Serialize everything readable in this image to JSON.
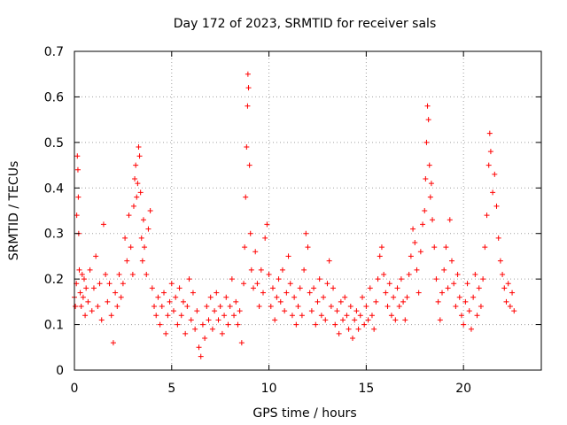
{
  "chart_data": {
    "type": "scatter",
    "title": "Day 172 of 2023, SRMTID for receiver sals",
    "xlabel": "GPS time / hours",
    "ylabel": "SRMTID / TECUs",
    "xlim": [
      0,
      24
    ],
    "ylim": [
      0,
      0.7
    ],
    "xticks": [
      0,
      5,
      10,
      15,
      20
    ],
    "yticks": [
      0,
      0.1,
      0.2,
      0.3,
      0.4,
      0.5,
      0.6,
      0.7
    ],
    "xtick_labels": [
      "0",
      "5",
      "10",
      "15",
      "20"
    ],
    "ytick_labels": [
      "0",
      "0.1",
      "0.2",
      "0.3",
      "0.4",
      "0.5",
      "0.6",
      "0.7"
    ],
    "grid": true,
    "marker": "+",
    "color": "#ff0000",
    "series": [
      {
        "name": "SRMTID",
        "points": [
          [
            0.0,
            0.16
          ],
          [
            0.05,
            0.14
          ],
          [
            0.1,
            0.19
          ],
          [
            0.12,
            0.34
          ],
          [
            0.15,
            0.47
          ],
          [
            0.18,
            0.44
          ],
          [
            0.2,
            0.38
          ],
          [
            0.22,
            0.3
          ],
          [
            0.25,
            0.22
          ],
          [
            0.3,
            0.17
          ],
          [
            0.35,
            0.14
          ],
          [
            0.4,
            0.21
          ],
          [
            0.45,
            0.16
          ],
          [
            0.5,
            0.2
          ],
          [
            0.55,
            0.12
          ],
          [
            0.6,
            0.18
          ],
          [
            0.7,
            0.15
          ],
          [
            0.8,
            0.22
          ],
          [
            0.9,
            0.13
          ],
          [
            1.0,
            0.18
          ],
          [
            1.1,
            0.25
          ],
          [
            1.2,
            0.14
          ],
          [
            1.3,
            0.19
          ],
          [
            1.4,
            0.11
          ],
          [
            1.5,
            0.32
          ],
          [
            1.6,
            0.21
          ],
          [
            1.7,
            0.15
          ],
          [
            1.8,
            0.19
          ],
          [
            1.9,
            0.12
          ],
          [
            2.0,
            0.06
          ],
          [
            2.1,
            0.17
          ],
          [
            2.2,
            0.14
          ],
          [
            2.3,
            0.21
          ],
          [
            2.4,
            0.16
          ],
          [
            2.5,
            0.19
          ],
          [
            2.6,
            0.29
          ],
          [
            2.7,
            0.24
          ],
          [
            2.8,
            0.34
          ],
          [
            2.9,
            0.27
          ],
          [
            3.0,
            0.21
          ],
          [
            3.05,
            0.36
          ],
          [
            3.1,
            0.42
          ],
          [
            3.15,
            0.45
          ],
          [
            3.2,
            0.38
          ],
          [
            3.25,
            0.41
          ],
          [
            3.3,
            0.49
          ],
          [
            3.35,
            0.47
          ],
          [
            3.4,
            0.39
          ],
          [
            3.45,
            0.29
          ],
          [
            3.5,
            0.24
          ],
          [
            3.55,
            0.33
          ],
          [
            3.6,
            0.27
          ],
          [
            3.7,
            0.21
          ],
          [
            3.8,
            0.31
          ],
          [
            3.9,
            0.35
          ],
          [
            4.0,
            0.18
          ],
          [
            4.1,
            0.14
          ],
          [
            4.2,
            0.12
          ],
          [
            4.3,
            0.16
          ],
          [
            4.4,
            0.1
          ],
          [
            4.5,
            0.14
          ],
          [
            4.6,
            0.17
          ],
          [
            4.7,
            0.08
          ],
          [
            4.8,
            0.12
          ],
          [
            4.9,
            0.15
          ],
          [
            5.0,
            0.19
          ],
          [
            5.1,
            0.13
          ],
          [
            5.2,
            0.16
          ],
          [
            5.3,
            0.1
          ],
          [
            5.4,
            0.18
          ],
          [
            5.5,
            0.12
          ],
          [
            5.6,
            0.15
          ],
          [
            5.7,
            0.08
          ],
          [
            5.8,
            0.14
          ],
          [
            5.9,
            0.2
          ],
          [
            6.0,
            0.11
          ],
          [
            6.1,
            0.17
          ],
          [
            6.2,
            0.09
          ],
          [
            6.3,
            0.13
          ],
          [
            6.4,
            0.05
          ],
          [
            6.5,
            0.03
          ],
          [
            6.6,
            0.1
          ],
          [
            6.7,
            0.07
          ],
          [
            6.8,
            0.14
          ],
          [
            6.9,
            0.11
          ],
          [
            7.0,
            0.16
          ],
          [
            7.1,
            0.09
          ],
          [
            7.2,
            0.13
          ],
          [
            7.3,
            0.17
          ],
          [
            7.4,
            0.11
          ],
          [
            7.5,
            0.14
          ],
          [
            7.6,
            0.08
          ],
          [
            7.7,
            0.12
          ],
          [
            7.8,
            0.16
          ],
          [
            7.9,
            0.1
          ],
          [
            8.0,
            0.14
          ],
          [
            8.1,
            0.2
          ],
          [
            8.2,
            0.12
          ],
          [
            8.3,
            0.15
          ],
          [
            8.4,
            0.1
          ],
          [
            8.5,
            0.13
          ],
          [
            8.6,
            0.06
          ],
          [
            8.7,
            0.19
          ],
          [
            8.75,
            0.27
          ],
          [
            8.8,
            0.38
          ],
          [
            8.85,
            0.49
          ],
          [
            8.9,
            0.58
          ],
          [
            8.92,
            0.65
          ],
          [
            8.95,
            0.62
          ],
          [
            9.0,
            0.45
          ],
          [
            9.05,
            0.3
          ],
          [
            9.1,
            0.22
          ],
          [
            9.2,
            0.18
          ],
          [
            9.3,
            0.26
          ],
          [
            9.4,
            0.19
          ],
          [
            9.5,
            0.14
          ],
          [
            9.6,
            0.22
          ],
          [
            9.7,
            0.17
          ],
          [
            9.8,
            0.29
          ],
          [
            9.9,
            0.32
          ],
          [
            10.0,
            0.21
          ],
          [
            10.1,
            0.14
          ],
          [
            10.2,
            0.18
          ],
          [
            10.3,
            0.11
          ],
          [
            10.4,
            0.16
          ],
          [
            10.5,
            0.2
          ],
          [
            10.6,
            0.15
          ],
          [
            10.7,
            0.22
          ],
          [
            10.8,
            0.13
          ],
          [
            10.9,
            0.17
          ],
          [
            11.0,
            0.25
          ],
          [
            11.1,
            0.19
          ],
          [
            11.2,
            0.12
          ],
          [
            11.3,
            0.16
          ],
          [
            11.4,
            0.1
          ],
          [
            11.5,
            0.14
          ],
          [
            11.6,
            0.18
          ],
          [
            11.7,
            0.12
          ],
          [
            11.8,
            0.22
          ],
          [
            11.9,
            0.3
          ],
          [
            12.0,
            0.27
          ],
          [
            12.1,
            0.17
          ],
          [
            12.2,
            0.13
          ],
          [
            12.3,
            0.18
          ],
          [
            12.4,
            0.1
          ],
          [
            12.5,
            0.15
          ],
          [
            12.6,
            0.2
          ],
          [
            12.7,
            0.12
          ],
          [
            12.8,
            0.16
          ],
          [
            12.9,
            0.11
          ],
          [
            13.0,
            0.19
          ],
          [
            13.1,
            0.24
          ],
          [
            13.2,
            0.14
          ],
          [
            13.3,
            0.18
          ],
          [
            13.4,
            0.1
          ],
          [
            13.5,
            0.13
          ],
          [
            13.6,
            0.08
          ],
          [
            13.7,
            0.15
          ],
          [
            13.8,
            0.11
          ],
          [
            13.9,
            0.16
          ],
          [
            14.0,
            0.12
          ],
          [
            14.1,
            0.09
          ],
          [
            14.2,
            0.14
          ],
          [
            14.3,
            0.07
          ],
          [
            14.4,
            0.11
          ],
          [
            14.5,
            0.13
          ],
          [
            14.6,
            0.09
          ],
          [
            14.7,
            0.12
          ],
          [
            14.8,
            0.16
          ],
          [
            14.9,
            0.1
          ],
          [
            15.0,
            0.14
          ],
          [
            15.1,
            0.11
          ],
          [
            15.2,
            0.18
          ],
          [
            15.3,
            0.12
          ],
          [
            15.4,
            0.09
          ],
          [
            15.5,
            0.15
          ],
          [
            15.6,
            0.2
          ],
          [
            15.7,
            0.25
          ],
          [
            15.8,
            0.27
          ],
          [
            15.9,
            0.21
          ],
          [
            16.0,
            0.17
          ],
          [
            16.1,
            0.14
          ],
          [
            16.2,
            0.19
          ],
          [
            16.3,
            0.12
          ],
          [
            16.4,
            0.16
          ],
          [
            16.5,
            0.11
          ],
          [
            16.6,
            0.18
          ],
          [
            16.7,
            0.14
          ],
          [
            16.8,
            0.2
          ],
          [
            16.9,
            0.15
          ],
          [
            17.0,
            0.11
          ],
          [
            17.1,
            0.16
          ],
          [
            17.2,
            0.21
          ],
          [
            17.3,
            0.25
          ],
          [
            17.4,
            0.31
          ],
          [
            17.5,
            0.28
          ],
          [
            17.6,
            0.22
          ],
          [
            17.7,
            0.17
          ],
          [
            17.8,
            0.26
          ],
          [
            17.9,
            0.32
          ],
          [
            18.0,
            0.35
          ],
          [
            18.05,
            0.42
          ],
          [
            18.1,
            0.5
          ],
          [
            18.15,
            0.58
          ],
          [
            18.2,
            0.55
          ],
          [
            18.25,
            0.45
          ],
          [
            18.3,
            0.38
          ],
          [
            18.35,
            0.41
          ],
          [
            18.4,
            0.33
          ],
          [
            18.5,
            0.27
          ],
          [
            18.6,
            0.2
          ],
          [
            18.7,
            0.15
          ],
          [
            18.8,
            0.11
          ],
          [
            18.9,
            0.17
          ],
          [
            19.0,
            0.22
          ],
          [
            19.1,
            0.27
          ],
          [
            19.2,
            0.18
          ],
          [
            19.3,
            0.33
          ],
          [
            19.4,
            0.24
          ],
          [
            19.5,
            0.19
          ],
          [
            19.6,
            0.14
          ],
          [
            19.7,
            0.21
          ],
          [
            19.8,
            0.16
          ],
          [
            19.9,
            0.12
          ],
          [
            20.0,
            0.1
          ],
          [
            20.1,
            0.15
          ],
          [
            20.2,
            0.19
          ],
          [
            20.3,
            0.13
          ],
          [
            20.4,
            0.09
          ],
          [
            20.5,
            0.16
          ],
          [
            20.6,
            0.21
          ],
          [
            20.7,
            0.12
          ],
          [
            20.8,
            0.18
          ],
          [
            20.9,
            0.14
          ],
          [
            21.0,
            0.2
          ],
          [
            21.1,
            0.27
          ],
          [
            21.2,
            0.34
          ],
          [
            21.3,
            0.45
          ],
          [
            21.35,
            0.52
          ],
          [
            21.4,
            0.48
          ],
          [
            21.5,
            0.39
          ],
          [
            21.6,
            0.43
          ],
          [
            21.7,
            0.36
          ],
          [
            21.8,
            0.29
          ],
          [
            21.9,
            0.24
          ],
          [
            22.0,
            0.21
          ],
          [
            22.1,
            0.18
          ],
          [
            22.2,
            0.15
          ],
          [
            22.3,
            0.19
          ],
          [
            22.4,
            0.14
          ],
          [
            22.5,
            0.17
          ],
          [
            22.6,
            0.13
          ]
        ]
      }
    ]
  }
}
